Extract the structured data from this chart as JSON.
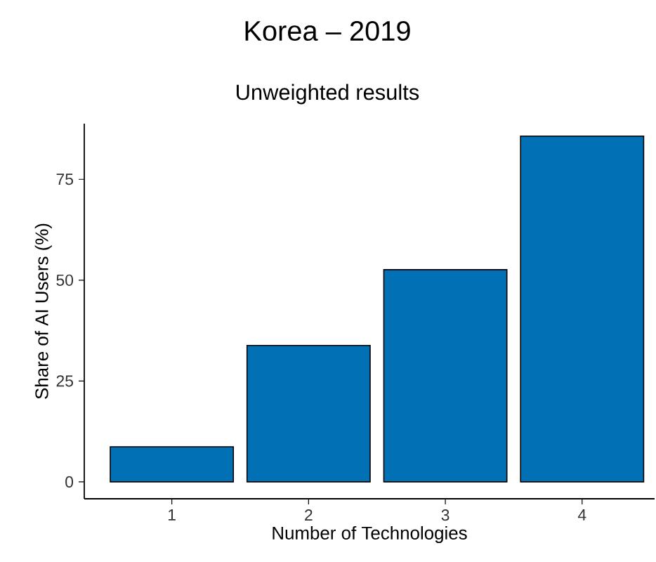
{
  "chart_data": {
    "type": "bar",
    "title": "Korea – 2019",
    "subtitle": "Unweighted results",
    "xlabel": "Number of Technologies",
    "ylabel": "Share of AI Users (%)",
    "categories": [
      "1",
      "2",
      "3",
      "4"
    ],
    "values": [
      8.7,
      33.8,
      52.6,
      85.7
    ],
    "color": "#0170b4",
    "ylim": [
      -4.2,
      88.8
    ],
    "yticks": [
      0,
      25,
      50,
      75
    ],
    "grid": false
  }
}
